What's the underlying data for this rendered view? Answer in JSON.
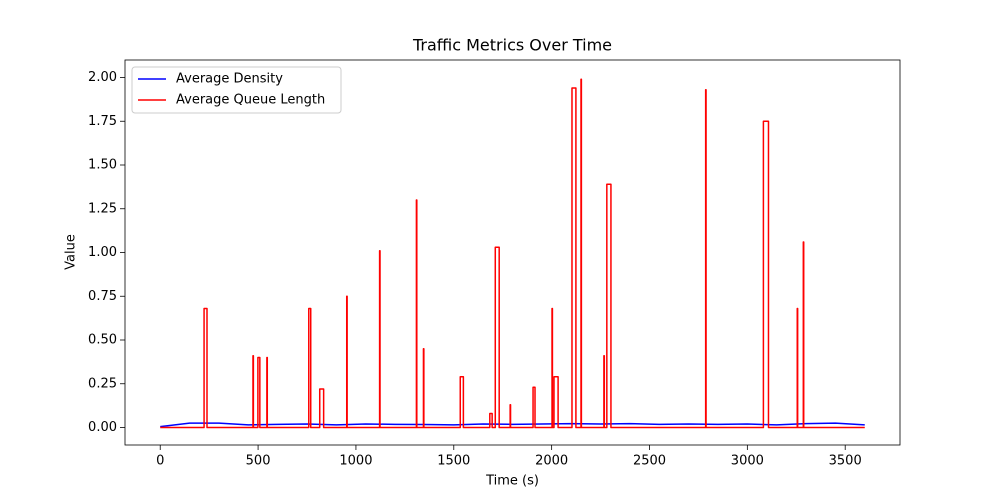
{
  "chart_data": {
    "type": "line",
    "title": "Traffic Metrics Over Time",
    "x_label": "Time (s)",
    "y_label": "Value",
    "xlim": [
      -180,
      3780
    ],
    "ylim": [
      -0.1,
      2.1
    ],
    "xticks": [
      0,
      500,
      1000,
      1500,
      2000,
      2500,
      3000,
      3500
    ],
    "yticks": [
      {
        "value": 0,
        "label": "0.00"
      },
      {
        "value": 0.25,
        "label": "0.25"
      },
      {
        "value": 0.5,
        "label": "0.50"
      },
      {
        "value": 0.75,
        "label": "0.75"
      },
      {
        "value": 1,
        "label": "1.00"
      },
      {
        "value": 1.25,
        "label": "1.25"
      },
      {
        "value": 1.5,
        "label": "1.50"
      },
      {
        "value": 1.75,
        "label": "1.75"
      },
      {
        "value": 2,
        "label": "2.00"
      }
    ],
    "legend": "upper left",
    "grid": false,
    "series": [
      {
        "name": "Average Density",
        "color": "#0000ff",
        "x": [
          0,
          150,
          300,
          450,
          600,
          750,
          900,
          1050,
          1200,
          1350,
          1500,
          1650,
          1800,
          1950,
          2100,
          2250,
          2400,
          2550,
          2700,
          2850,
          3000,
          3150,
          3300,
          3450,
          3600
        ],
        "values": [
          0.005,
          0.025,
          0.025,
          0.015,
          0.018,
          0.02,
          0.015,
          0.02,
          0.018,
          0.017,
          0.015,
          0.02,
          0.018,
          0.02,
          0.022,
          0.02,
          0.022,
          0.018,
          0.02,
          0.018,
          0.02,
          0.015,
          0.022,
          0.025,
          0.015
        ]
      },
      {
        "name": "Average Queue Length",
        "color": "#ff0000",
        "x": [
          0,
          224,
          224,
          239,
          239,
          474,
          474,
          476,
          476,
          499,
          499,
          509,
          509,
          545,
          545,
          547,
          547,
          759,
          759,
          769,
          769,
          815,
          815,
          835,
          835,
          953,
          953,
          955,
          955,
          1121,
          1121,
          1123,
          1123,
          1309,
          1309,
          1311,
          1311,
          1345,
          1345,
          1347,
          1347,
          1533,
          1533,
          1549,
          1549,
          1684,
          1684,
          1696,
          1696,
          1712,
          1712,
          1732,
          1732,
          1788,
          1788,
          1790,
          1790,
          1905,
          1905,
          1915,
          1915,
          2002,
          2002,
          2004,
          2004,
          2012,
          2012,
          2033,
          2033,
          2104,
          2104,
          2124,
          2124,
          2150,
          2150,
          2152,
          2152,
          2267,
          2267,
          2269,
          2269,
          2282,
          2282,
          2303,
          2303,
          2787,
          2787,
          2789,
          2789,
          3082,
          3082,
          3108,
          3108,
          3255,
          3255,
          3257,
          3257,
          3286,
          3286,
          3288,
          3288,
          3600
        ],
        "values": [
          0,
          0,
          0.68,
          0.68,
          0,
          0,
          0.41,
          0.41,
          0,
          0,
          0.4,
          0.4,
          0,
          0,
          0.4,
          0.4,
          0,
          0,
          0.68,
          0.68,
          0,
          0,
          0.22,
          0.22,
          0,
          0,
          0.75,
          0.75,
          0,
          0,
          1.01,
          1.01,
          0,
          0,
          1.3,
          1.3,
          0,
          0,
          0.45,
          0.45,
          0,
          0,
          0.29,
          0.29,
          0,
          0,
          0.08,
          0.08,
          0,
          0,
          1.03,
          1.03,
          0,
          0,
          0.13,
          0.13,
          0,
          0,
          0.23,
          0.23,
          0,
          0,
          0.68,
          0.68,
          0,
          0,
          0.29,
          0.29,
          0,
          0,
          1.94,
          1.94,
          0,
          0,
          1.99,
          1.99,
          0,
          0,
          0.41,
          0.41,
          0,
          0,
          1.39,
          1.39,
          0,
          0,
          1.93,
          1.93,
          0,
          0,
          1.75,
          1.75,
          0,
          0,
          0.68,
          0.68,
          0,
          0,
          1.06,
          1.06,
          0,
          0
        ]
      }
    ]
  }
}
